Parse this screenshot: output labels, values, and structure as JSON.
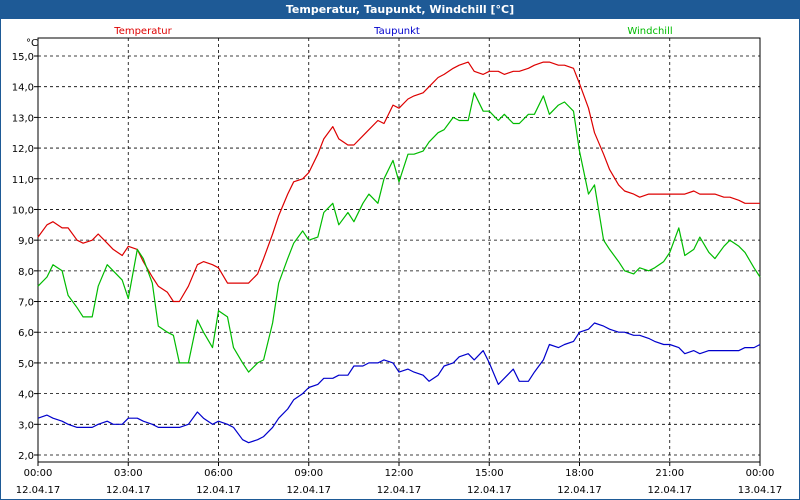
{
  "window": {
    "title": "Temperatur, Taupunkt, Windchill [°C]"
  },
  "chart_data": {
    "type": "line",
    "title": "Temperatur, Taupunkt, Windchill [°C]",
    "ylabel": "°C",
    "xlabel": "",
    "ylim": [
      2.0,
      15.0
    ],
    "yticks": [
      "2,0",
      "3,0",
      "4,0",
      "5,0",
      "6,0",
      "7,0",
      "8,0",
      "9,0",
      "10,0",
      "11,0",
      "12,0",
      "13,0",
      "14,0",
      "15,0"
    ],
    "xlim": [
      0,
      24
    ],
    "xticks": [
      {
        "hour": 0,
        "time": "00:00",
        "date": "12.04.17"
      },
      {
        "hour": 3,
        "time": "03:00",
        "date": "12.04.17"
      },
      {
        "hour": 6,
        "time": "06:00",
        "date": "12.04.17"
      },
      {
        "hour": 9,
        "time": "09:00",
        "date": "12.04.17"
      },
      {
        "hour": 12,
        "time": "12:00",
        "date": "12.04.17"
      },
      {
        "hour": 15,
        "time": "15:00",
        "date": "12.04.17"
      },
      {
        "hour": 18,
        "time": "18:00",
        "date": "12.04.17"
      },
      {
        "hour": 21,
        "time": "21:00",
        "date": "12.04.17"
      },
      {
        "hour": 24,
        "time": "00:00",
        "date": "13.04.17"
      }
    ],
    "grid": true,
    "series": [
      {
        "name": "Temperatur",
        "color": "#dd0000",
        "x": [
          0,
          0.3,
          0.5,
          0.8,
          1.0,
          1.3,
          1.5,
          1.8,
          2.0,
          2.3,
          2.5,
          2.8,
          3.0,
          3.3,
          3.5,
          3.8,
          4.0,
          4.3,
          4.5,
          4.7,
          5.0,
          5.3,
          5.5,
          5.8,
          6.0,
          6.3,
          6.5,
          6.8,
          7.0,
          7.3,
          7.5,
          7.8,
          8.0,
          8.3,
          8.5,
          8.8,
          9.0,
          9.3,
          9.5,
          9.8,
          10.0,
          10.3,
          10.5,
          10.8,
          11.0,
          11.3,
          11.5,
          11.8,
          12.0,
          12.3,
          12.5,
          12.8,
          13.0,
          13.3,
          13.5,
          13.8,
          14.0,
          14.3,
          14.5,
          14.8,
          15.0,
          15.3,
          15.5,
          15.8,
          16.0,
          16.3,
          16.5,
          16.8,
          17.0,
          17.3,
          17.5,
          17.8,
          18.0,
          18.3,
          18.5,
          18.8,
          19.0,
          19.3,
          19.5,
          19.8,
          20.0,
          20.3,
          20.5,
          20.8,
          21.0,
          21.3,
          21.5,
          21.8,
          22.0,
          22.3,
          22.5,
          22.8,
          23.0,
          23.3,
          23.5,
          23.8,
          24.0
        ],
        "y": [
          9.1,
          9.5,
          9.6,
          9.4,
          9.4,
          9.0,
          8.9,
          9.0,
          9.2,
          8.9,
          8.7,
          8.5,
          8.8,
          8.7,
          8.3,
          7.8,
          7.5,
          7.3,
          7.0,
          7.0,
          7.5,
          8.2,
          8.3,
          8.2,
          8.1,
          7.6,
          7.6,
          7.6,
          7.6,
          7.9,
          8.4,
          9.2,
          9.8,
          10.5,
          10.9,
          11.0,
          11.2,
          11.8,
          12.3,
          12.7,
          12.3,
          12.1,
          12.1,
          12.4,
          12.6,
          12.9,
          12.8,
          13.4,
          13.3,
          13.6,
          13.7,
          13.8,
          14.0,
          14.3,
          14.4,
          14.6,
          14.7,
          14.8,
          14.5,
          14.4,
          14.5,
          14.5,
          14.4,
          14.5,
          14.5,
          14.6,
          14.7,
          14.8,
          14.8,
          14.7,
          14.7,
          14.6,
          14.1,
          13.3,
          12.5,
          11.8,
          11.3,
          10.8,
          10.6,
          10.5,
          10.4,
          10.5,
          10.5,
          10.5,
          10.5,
          10.5,
          10.5,
          10.6,
          10.5,
          10.5,
          10.5,
          10.4,
          10.4,
          10.3,
          10.2,
          10.2,
          10.2
        ]
      },
      {
        "name": "Taupunkt",
        "color": "#0000cc",
        "x": [
          0,
          0.3,
          0.5,
          0.8,
          1.0,
          1.3,
          1.5,
          1.8,
          2.0,
          2.3,
          2.5,
          2.8,
          3.0,
          3.3,
          3.5,
          3.8,
          4.0,
          4.3,
          4.5,
          4.7,
          5.0,
          5.3,
          5.5,
          5.8,
          6.0,
          6.3,
          6.5,
          6.8,
          7.0,
          7.3,
          7.5,
          7.8,
          8.0,
          8.3,
          8.5,
          8.8,
          9.0,
          9.3,
          9.5,
          9.8,
          10.0,
          10.3,
          10.5,
          10.8,
          11.0,
          11.3,
          11.5,
          11.8,
          12.0,
          12.3,
          12.5,
          12.8,
          13.0,
          13.3,
          13.5,
          13.8,
          14.0,
          14.3,
          14.5,
          14.8,
          15.0,
          15.3,
          15.5,
          15.8,
          16.0,
          16.3,
          16.5,
          16.8,
          17.0,
          17.3,
          17.5,
          17.8,
          18.0,
          18.3,
          18.5,
          18.8,
          19.0,
          19.3,
          19.5,
          19.8,
          20.0,
          20.3,
          20.5,
          20.8,
          21.0,
          21.3,
          21.5,
          21.8,
          22.0,
          22.3,
          22.5,
          22.8,
          23.0,
          23.3,
          23.5,
          23.8,
          24.0
        ],
        "y": [
          3.2,
          3.3,
          3.2,
          3.1,
          3.0,
          2.9,
          2.9,
          2.9,
          3.0,
          3.1,
          3.0,
          3.0,
          3.2,
          3.2,
          3.1,
          3.0,
          2.9,
          2.9,
          2.9,
          2.9,
          3.0,
          3.4,
          3.2,
          3.0,
          3.1,
          3.0,
          2.9,
          2.5,
          2.4,
          2.5,
          2.6,
          2.9,
          3.2,
          3.5,
          3.8,
          4.0,
          4.2,
          4.3,
          4.5,
          4.5,
          4.6,
          4.6,
          4.9,
          4.9,
          5.0,
          5.0,
          5.1,
          5.0,
          4.7,
          4.8,
          4.7,
          4.6,
          4.4,
          4.6,
          4.9,
          5.0,
          5.2,
          5.3,
          5.1,
          5.4,
          5.0,
          4.3,
          4.5,
          4.8,
          4.4,
          4.4,
          4.7,
          5.1,
          5.6,
          5.5,
          5.6,
          5.7,
          6.0,
          6.1,
          6.3,
          6.2,
          6.1,
          6.0,
          6.0,
          5.9,
          5.9,
          5.8,
          5.7,
          5.6,
          5.6,
          5.5,
          5.3,
          5.4,
          5.3,
          5.4,
          5.4,
          5.4,
          5.4,
          5.4,
          5.5,
          5.5,
          5.6
        ]
      },
      {
        "name": "Windchill",
        "color": "#00bb00",
        "x": [
          0,
          0.3,
          0.5,
          0.8,
          1.0,
          1.3,
          1.5,
          1.8,
          2.0,
          2.3,
          2.5,
          2.8,
          3.0,
          3.3,
          3.5,
          3.8,
          4.0,
          4.3,
          4.5,
          4.7,
          5.0,
          5.3,
          5.5,
          5.8,
          6.0,
          6.3,
          6.5,
          6.8,
          7.0,
          7.3,
          7.5,
          7.8,
          8.0,
          8.3,
          8.5,
          8.8,
          9.0,
          9.3,
          9.5,
          9.8,
          10.0,
          10.3,
          10.5,
          10.8,
          11.0,
          11.3,
          11.5,
          11.8,
          12.0,
          12.3,
          12.5,
          12.8,
          13.0,
          13.3,
          13.5,
          13.8,
          14.0,
          14.3,
          14.5,
          14.8,
          15.0,
          15.3,
          15.5,
          15.8,
          16.0,
          16.3,
          16.5,
          16.8,
          17.0,
          17.3,
          17.5,
          17.8,
          18.0,
          18.3,
          18.5,
          18.8,
          19.0,
          19.3,
          19.5,
          19.8,
          20.0,
          20.3,
          20.5,
          20.8,
          21.0,
          21.3,
          21.5,
          21.8,
          22.0,
          22.3,
          22.5,
          22.8,
          23.0,
          23.3,
          23.5,
          23.8,
          24.0
        ],
        "y": [
          7.5,
          7.8,
          8.2,
          8.0,
          7.2,
          6.8,
          6.5,
          6.5,
          7.5,
          8.2,
          8.0,
          7.7,
          7.1,
          8.7,
          8.4,
          7.6,
          6.2,
          6.0,
          5.9,
          5.0,
          5.0,
          6.4,
          6.0,
          5.5,
          6.7,
          6.5,
          5.5,
          5.0,
          4.7,
          5.0,
          5.1,
          6.3,
          7.6,
          8.4,
          8.9,
          9.3,
          9.0,
          9.1,
          9.9,
          10.2,
          9.5,
          9.9,
          9.6,
          10.2,
          10.5,
          10.2,
          11.0,
          11.6,
          10.9,
          11.8,
          11.8,
          11.9,
          12.2,
          12.5,
          12.6,
          13.0,
          12.9,
          12.9,
          13.8,
          13.2,
          13.2,
          12.9,
          13.1,
          12.8,
          12.8,
          13.1,
          13.1,
          13.7,
          13.1,
          13.4,
          13.5,
          13.2,
          11.9,
          10.5,
          10.8,
          9.0,
          8.7,
          8.3,
          8.0,
          7.9,
          8.1,
          8.0,
          8.1,
          8.3,
          8.6,
          9.4,
          8.5,
          8.7,
          9.1,
          8.6,
          8.4,
          8.8,
          9.0,
          8.8,
          8.6,
          8.1,
          7.8
        ]
      }
    ]
  }
}
